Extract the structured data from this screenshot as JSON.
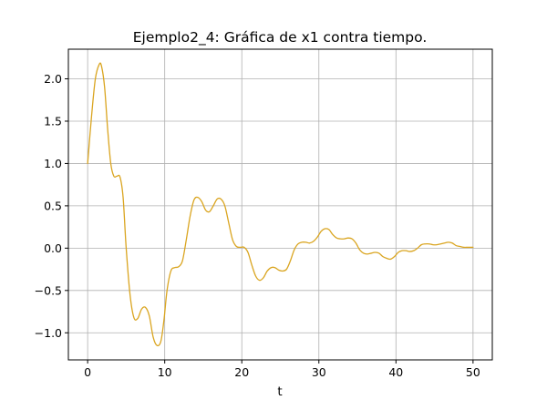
{
  "chart_data": {
    "type": "line",
    "title": "Ejemplo2_4: Gráfica de x1 contra tiempo.",
    "xlabel": "t",
    "ylabel": "",
    "xlim": [
      -2.5,
      52.5
    ],
    "ylim": [
      -1.32,
      2.35
    ],
    "grid": true,
    "x_ticks": [
      0,
      10,
      20,
      30,
      40,
      50
    ],
    "x_tick_labels": [
      "0",
      "10",
      "20",
      "30",
      "40",
      "50"
    ],
    "y_ticks": [
      -1.0,
      -0.5,
      0.0,
      0.5,
      1.0,
      1.5,
      2.0
    ],
    "y_tick_labels": [
      "−1.0",
      "−0.5",
      "0.0",
      "0.5",
      "1.0",
      "1.5",
      "2.0"
    ],
    "series": [
      {
        "color": "#daa520",
        "x": [
          0,
          0.5,
          1.0,
          1.5,
          1.8,
          2.2,
          2.6,
          3.0,
          3.4,
          3.8,
          4.2,
          4.6,
          5.0,
          5.5,
          6.0,
          6.5,
          7.0,
          7.5,
          8.0,
          8.5,
          9.0,
          9.5,
          9.9,
          10.3,
          10.8,
          11.3,
          11.8,
          12.3,
          12.8,
          13.3,
          13.8,
          14.3,
          14.8,
          15.3,
          15.8,
          16.3,
          16.8,
          17.3,
          17.8,
          18.3,
          18.8,
          19.3,
          19.8,
          20.3,
          20.8,
          21.3,
          21.8,
          22.3,
          22.8,
          23.3,
          23.8,
          24.3,
          24.8,
          25.3,
          25.8,
          26.3,
          26.8,
          27.3,
          27.8,
          28.3,
          28.8,
          29.3,
          29.8,
          30.3,
          30.8,
          31.3,
          31.8,
          32.3,
          32.8,
          33.3,
          33.8,
          34.3,
          34.8,
          35.3,
          35.8,
          36.3,
          36.8,
          37.3,
          37.8,
          38.3,
          38.8,
          39.3,
          39.8,
          40.3,
          40.8,
          41.3,
          41.8,
          42.3,
          42.8,
          43.3,
          43.8,
          44.3,
          44.8,
          45.3,
          45.8,
          46.3,
          46.8,
          47.3,
          47.8,
          48.3,
          48.8,
          49.3,
          49.8,
          50.0
        ],
        "y": [
          1.0,
          1.55,
          2.0,
          2.17,
          2.15,
          1.9,
          1.4,
          1.0,
          0.85,
          0.85,
          0.84,
          0.6,
          0.0,
          -0.55,
          -0.82,
          -0.83,
          -0.72,
          -0.7,
          -0.8,
          -1.05,
          -1.15,
          -1.1,
          -0.85,
          -0.5,
          -0.27,
          -0.23,
          -0.22,
          -0.15,
          0.1,
          0.38,
          0.57,
          0.6,
          0.55,
          0.45,
          0.43,
          0.5,
          0.58,
          0.58,
          0.5,
          0.3,
          0.1,
          0.02,
          0.01,
          0.01,
          -0.05,
          -0.2,
          -0.33,
          -0.38,
          -0.35,
          -0.27,
          -0.23,
          -0.23,
          -0.26,
          -0.27,
          -0.25,
          -0.15,
          -0.02,
          0.05,
          0.07,
          0.07,
          0.06,
          0.08,
          0.13,
          0.2,
          0.23,
          0.22,
          0.16,
          0.12,
          0.11,
          0.11,
          0.12,
          0.11,
          0.06,
          -0.02,
          -0.06,
          -0.07,
          -0.06,
          -0.05,
          -0.06,
          -0.1,
          -0.12,
          -0.13,
          -0.1,
          -0.05,
          -0.03,
          -0.03,
          -0.04,
          -0.03,
          0.0,
          0.04,
          0.05,
          0.05,
          0.04,
          0.04,
          0.05,
          0.06,
          0.07,
          0.06,
          0.03,
          0.02,
          0.01,
          0.01,
          0.01,
          0.01
        ]
      }
    ]
  }
}
